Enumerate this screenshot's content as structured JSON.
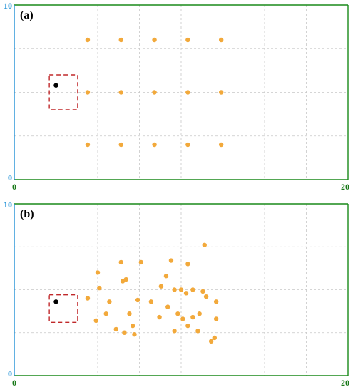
{
  "colors": {
    "frame_x": "#1a8a1a",
    "frame_y": "#1e90d6",
    "grid": "#c8c8c8",
    "point": "#f2a93b",
    "anchor": "#000000",
    "box": "#c0282a",
    "x_label": "#1a7a1a",
    "y_label": "#1e90d6"
  },
  "chart_data": [
    {
      "type": "scatter",
      "panel_label": "(a)",
      "xlim": [
        0,
        20
      ],
      "ylim": [
        0,
        10
      ],
      "x_ticks": [
        "0",
        "20"
      ],
      "y_ticks": [
        "0",
        "10"
      ],
      "grid": true,
      "series": [
        {
          "role": "targets",
          "color": "orange",
          "points": [
            [
              4.4,
              8.0
            ],
            [
              6.4,
              8.0
            ],
            [
              8.4,
              8.0
            ],
            [
              10.4,
              8.0
            ],
            [
              12.4,
              8.0
            ],
            [
              4.4,
              5.0
            ],
            [
              6.4,
              5.0
            ],
            [
              8.4,
              5.0
            ],
            [
              10.4,
              5.0
            ],
            [
              12.4,
              5.0
            ],
            [
              4.4,
              2.0
            ],
            [
              6.4,
              2.0
            ],
            [
              8.4,
              2.0
            ],
            [
              10.4,
              2.0
            ],
            [
              12.4,
              2.0
            ]
          ]
        },
        {
          "role": "anchor",
          "color": "black",
          "points": [
            [
              2.5,
              5.4
            ]
          ]
        }
      ],
      "box": {
        "x": [
          2.1,
          3.8
        ],
        "y": [
          4.0,
          6.0
        ],
        "style": "dashed red"
      }
    },
    {
      "type": "scatter",
      "panel_label": "(b)",
      "xlim": [
        0,
        20
      ],
      "ylim": [
        0,
        10
      ],
      "x_ticks": [
        "0",
        "20"
      ],
      "y_ticks": [
        "0",
        "10"
      ],
      "grid": true,
      "series": [
        {
          "role": "targets",
          "color": "orange",
          "points": [
            [
              11.4,
              7.6
            ],
            [
              7.6,
              6.6
            ],
            [
              9.4,
              6.7
            ],
            [
              10.4,
              6.5
            ],
            [
              6.4,
              6.6
            ],
            [
              5.0,
              6.0
            ],
            [
              9.1,
              5.8
            ],
            [
              6.5,
              5.5
            ],
            [
              5.1,
              5.1
            ],
            [
              8.8,
              5.2
            ],
            [
              9.6,
              5.0
            ],
            [
              10.0,
              5.0
            ],
            [
              10.7,
              5.0
            ],
            [
              11.3,
              4.9
            ],
            [
              10.3,
              4.8
            ],
            [
              12.1,
              4.3
            ],
            [
              11.5,
              4.6
            ],
            [
              4.4,
              4.5
            ],
            [
              7.4,
              4.4
            ],
            [
              8.2,
              4.3
            ],
            [
              5.7,
              4.3
            ],
            [
              9.2,
              4.0
            ],
            [
              6.9,
              3.6
            ],
            [
              9.8,
              3.6
            ],
            [
              10.7,
              3.4
            ],
            [
              11.1,
              3.6
            ],
            [
              5.5,
              3.6
            ],
            [
              8.7,
              3.4
            ],
            [
              10.1,
              3.3
            ],
            [
              12.1,
              3.3
            ],
            [
              4.9,
              3.2
            ],
            [
              7.1,
              2.9
            ],
            [
              10.4,
              2.9
            ],
            [
              9.6,
              2.6
            ],
            [
              11.0,
              2.6
            ],
            [
              6.1,
              2.7
            ],
            [
              6.6,
              2.5
            ],
            [
              7.2,
              2.4
            ],
            [
              11.8,
              2.0
            ],
            [
              12.0,
              2.2
            ],
            [
              6.7,
              5.6
            ]
          ]
        },
        {
          "role": "anchor",
          "color": "black",
          "points": [
            [
              2.5,
              4.3
            ]
          ]
        }
      ],
      "box": {
        "x": [
          2.1,
          3.8
        ],
        "y": [
          3.1,
          4.7
        ],
        "style": "dashed red"
      }
    }
  ]
}
